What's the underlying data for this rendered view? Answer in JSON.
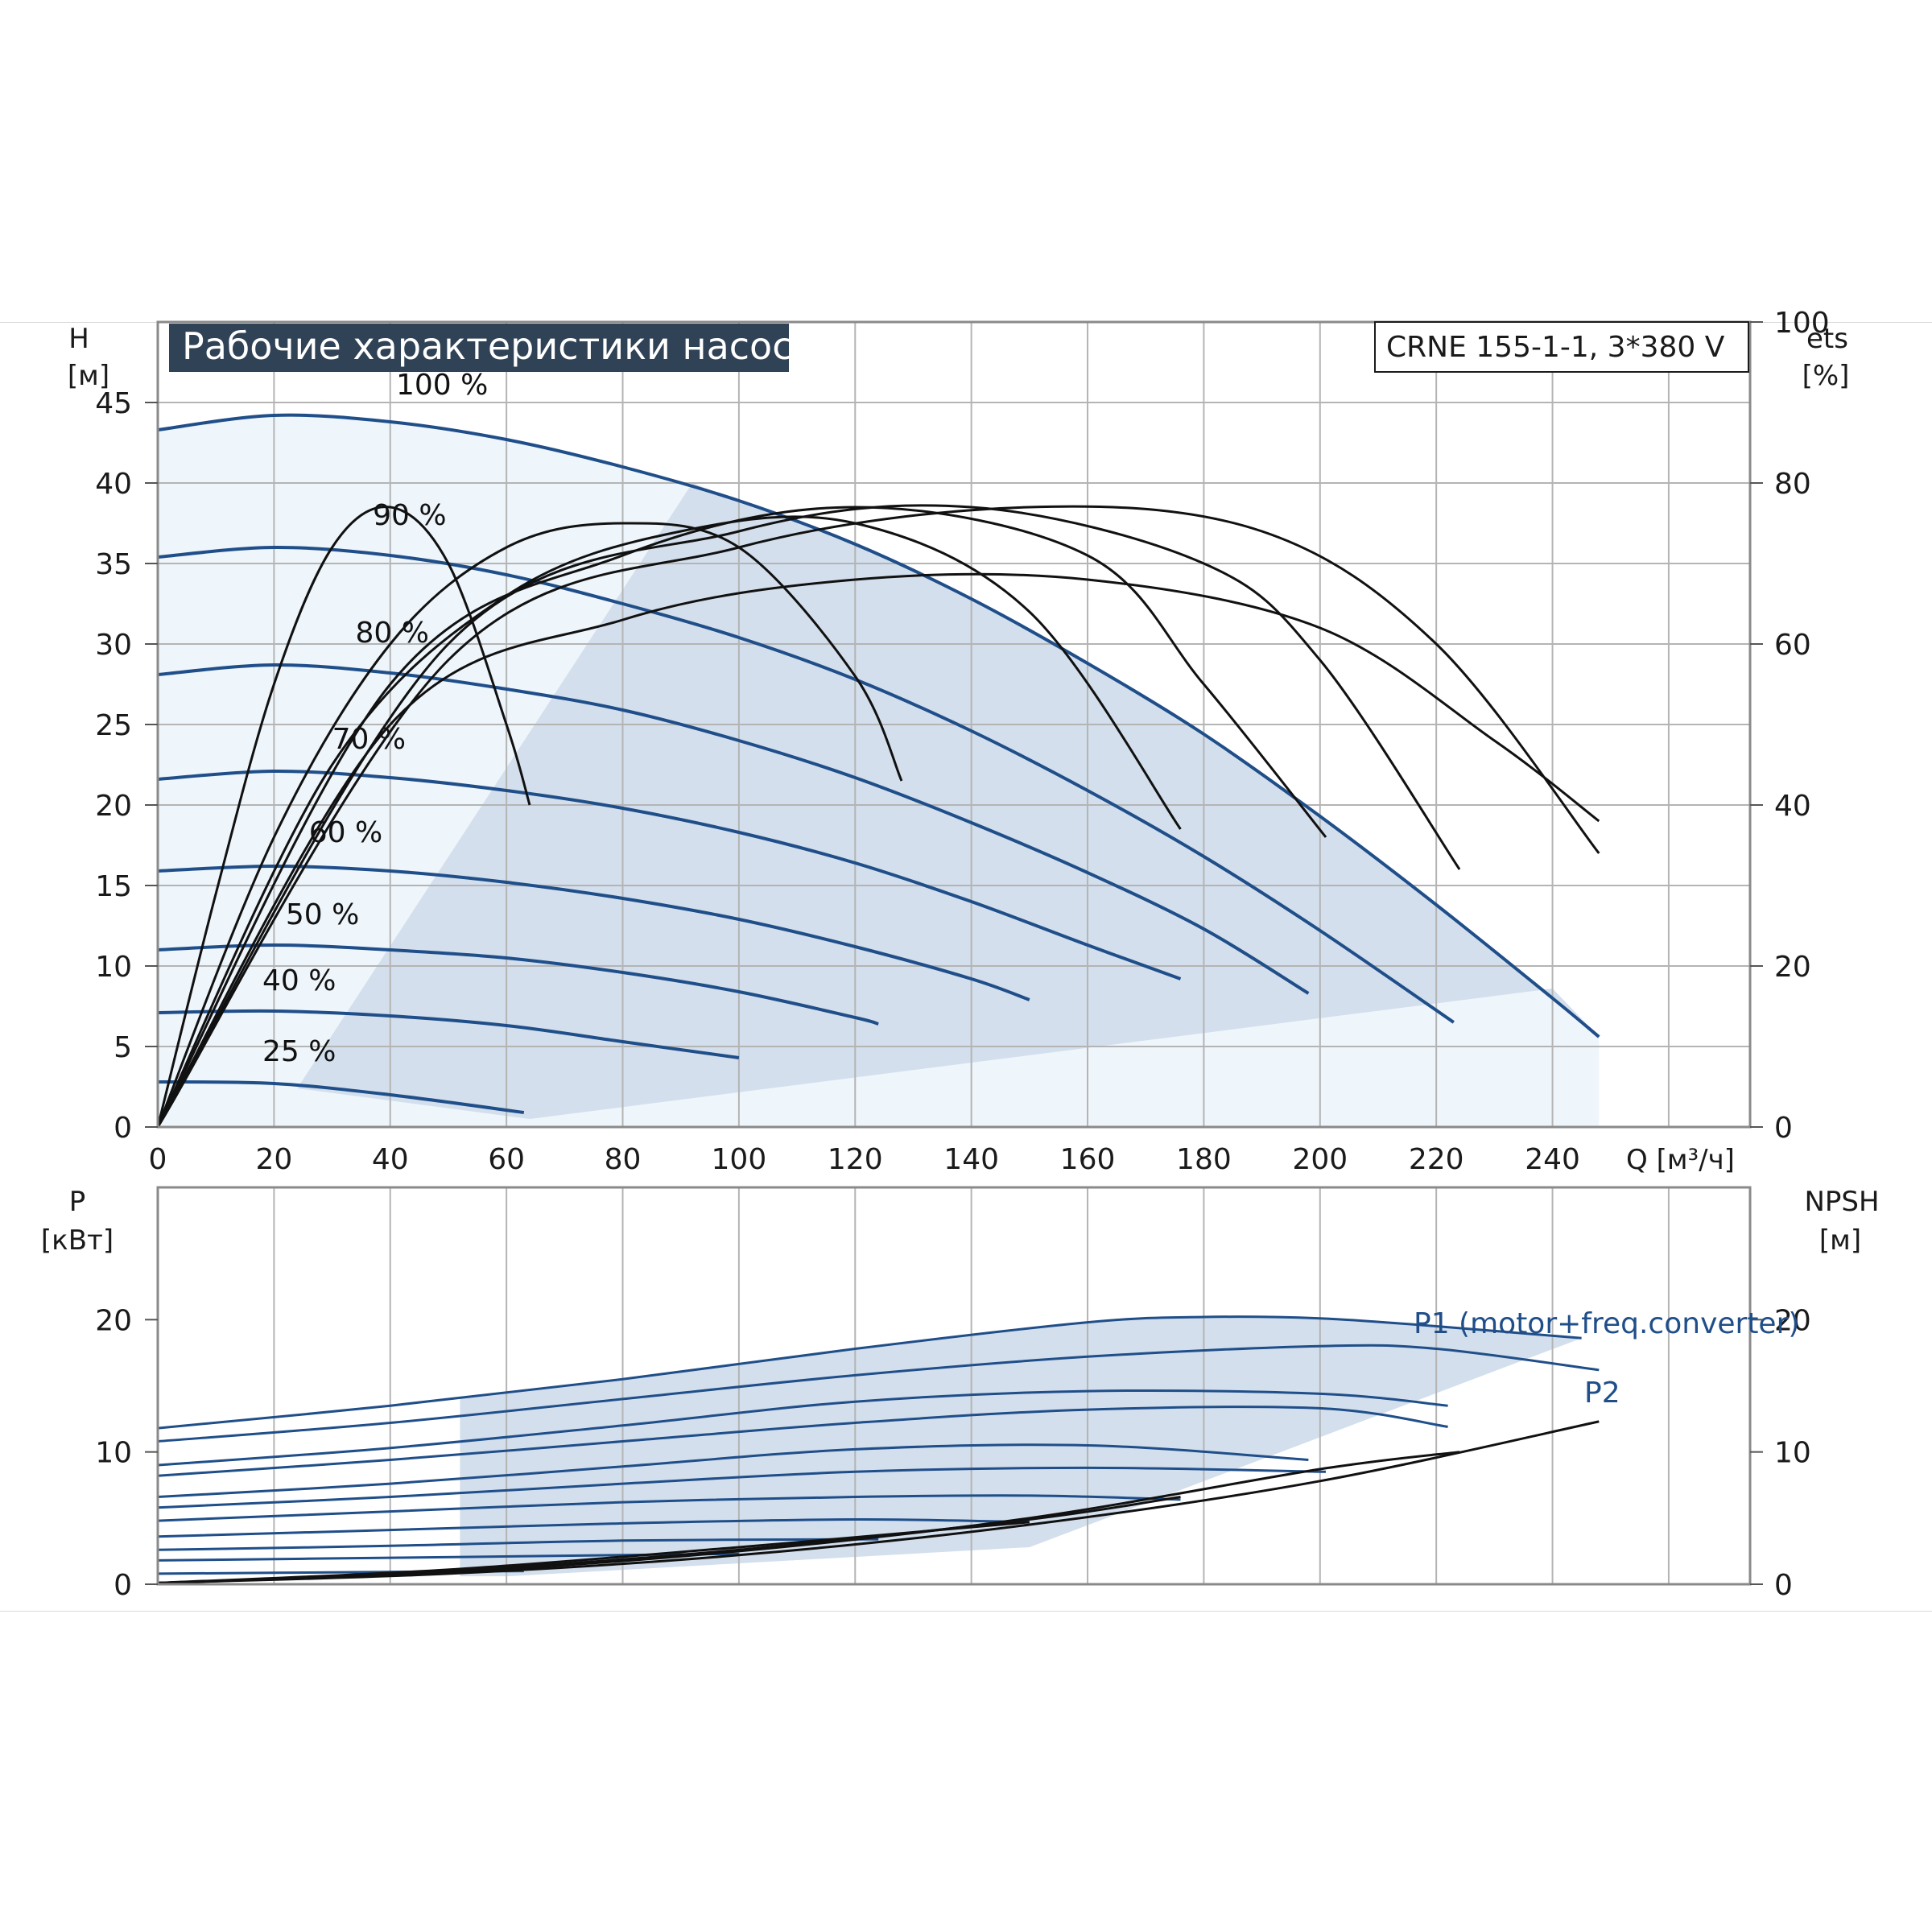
{
  "chart_title": "Рабочие характеристики насоса",
  "model": "CRNE 155-1-1, 3*380 V",
  "colors": {
    "head_curve": "#1f4e89",
    "eff_curve": "#111111",
    "band_fill": "#d3dfec",
    "light_fill": "#eef5fb",
    "grid": "#b4b4b4",
    "title_bg": "#2f4256"
  },
  "top_chart": {
    "y_label_lines": [
      "H",
      "[м]"
    ],
    "y2_label_lines": [
      "ets",
      "[%]"
    ],
    "x_label": "Q [м³/ч]",
    "x_ticks": [
      "0",
      "20",
      "40",
      "60",
      "80",
      "100",
      "120",
      "140",
      "160",
      "180",
      "200",
      "220",
      "240"
    ],
    "y_ticks": [
      "0",
      "5",
      "10",
      "15",
      "20",
      "25",
      "30",
      "35",
      "40",
      "45"
    ],
    "y2_ticks": [
      "0",
      "20",
      "40",
      "60",
      "80",
      "100"
    ],
    "speed_labels": [
      "100 %",
      "90 %",
      "80 %",
      "70 %",
      "60 %",
      "50 %",
      "40 %",
      "25 %"
    ]
  },
  "bottom_chart": {
    "y_label_lines": [
      "P",
      "[кВт]"
    ],
    "y2_label_lines": [
      "NPSH",
      "[м]"
    ],
    "y_ticks": [
      "0",
      "10",
      "20"
    ],
    "y2_ticks": [
      "0",
      "10",
      "20"
    ],
    "p1_label": "P1 (motor+freq.converter)",
    "p2_label": "P2"
  },
  "chart_data": [
    {
      "type": "line",
      "xlabel": "Q [м³/ч]",
      "ylabel": "H [м]",
      "y2label": "ets [%]",
      "xlim": [
        0,
        274
      ],
      "ylim": [
        0,
        50
      ],
      "y2lim": [
        0,
        100
      ],
      "grid": true,
      "series": [
        {
          "name": "100 %",
          "x": [
            0,
            20,
            40,
            60,
            80,
            100,
            120,
            140,
            160,
            180,
            200,
            220,
            240,
            248
          ],
          "y": [
            43.3,
            44.2,
            43.8,
            42.7,
            41.0,
            38.9,
            36.2,
            32.8,
            28.8,
            24.4,
            19.3,
            13.8,
            8.0,
            5.6
          ]
        },
        {
          "name": "90 %",
          "x": [
            0,
            20,
            40,
            60,
            80,
            100,
            120,
            140,
            160,
            180,
            200,
            223
          ],
          "y": [
            35.4,
            36.0,
            35.5,
            34.3,
            32.5,
            30.4,
            27.8,
            24.6,
            20.9,
            16.8,
            12.2,
            6.5
          ]
        },
        {
          "name": "80 %",
          "x": [
            0,
            20,
            40,
            60,
            80,
            100,
            120,
            140,
            160,
            180,
            198
          ],
          "y": [
            28.1,
            28.7,
            28.2,
            27.2,
            25.9,
            24.0,
            21.7,
            18.9,
            15.8,
            12.3,
            8.3
          ]
        },
        {
          "name": "70 %",
          "x": [
            0,
            20,
            40,
            60,
            80,
            100,
            120,
            140,
            160,
            176
          ],
          "y": [
            21.6,
            22.1,
            21.7,
            20.9,
            19.8,
            18.3,
            16.4,
            14.0,
            11.3,
            9.2
          ]
        },
        {
          "name": "60 %",
          "x": [
            0,
            20,
            40,
            60,
            80,
            100,
            120,
            140,
            150
          ],
          "y": [
            15.9,
            16.2,
            15.9,
            15.2,
            14.2,
            12.9,
            11.2,
            9.2,
            7.9
          ]
        },
        {
          "name": "50 %",
          "x": [
            0,
            20,
            40,
            60,
            80,
            100,
            120,
            124
          ],
          "y": [
            11.0,
            11.3,
            11.0,
            10.5,
            9.6,
            8.4,
            6.8,
            6.4
          ]
        },
        {
          "name": "40 %",
          "x": [
            0,
            20,
            40,
            60,
            80,
            100
          ],
          "y": [
            7.1,
            7.2,
            6.9,
            6.3,
            5.3,
            4.3
          ]
        },
        {
          "name": "25 %",
          "x": [
            0,
            20,
            40,
            63
          ],
          "y": [
            2.8,
            2.7,
            2.0,
            0.9
          ]
        },
        {
          "name": "",
          "axis": "y2",
          "x": [
            0,
            10,
            20,
            30,
            40,
            50,
            60,
            64
          ],
          "y": [
            0,
            29,
            55,
            72,
            77,
            70,
            50,
            40
          ]
        },
        {
          "name": "",
          "axis": "y2",
          "x": [
            0,
            20,
            40,
            60,
            80,
            100,
            120,
            128
          ],
          "y": [
            0,
            36,
            60,
            72,
            75,
            72,
            56,
            43
          ]
        },
        {
          "name": "",
          "axis": "y2",
          "x": [
            0,
            30,
            60,
            90,
            120,
            150,
            176
          ],
          "y": [
            0,
            45,
            66,
            74,
            75,
            64,
            37
          ]
        },
        {
          "name": "",
          "axis": "y2",
          "x": [
            0,
            40,
            80,
            120,
            160,
            180,
            201
          ],
          "y": [
            0,
            55,
            71,
            77,
            71,
            55,
            36
          ]
        },
        {
          "name": "",
          "axis": "y2",
          "x": [
            0,
            50,
            100,
            140,
            180,
            200,
            224
          ],
          "y": [
            0,
            60,
            74,
            77,
            70,
            58,
            32
          ]
        },
        {
          "name": "",
          "axis": "y2",
          "x": [
            0,
            50,
            100,
            150,
            190,
            220,
            248
          ],
          "y": [
            0,
            58,
            72,
            77,
            74,
            60,
            34
          ]
        },
        {
          "name": "",
          "axis": "y2",
          "x": [
            0,
            40,
            80,
            120,
            160,
            200,
            230,
            248
          ],
          "y": [
            0,
            50,
            63,
            68,
            68,
            62,
            48,
            38
          ]
        }
      ]
    },
    {
      "type": "line",
      "xlabel": "Q [м³/ч]",
      "ylabel": "P [кВт]",
      "y2label": "NPSH [м]",
      "xlim": [
        0,
        274
      ],
      "ylim": [
        0,
        30
      ],
      "y2lim": [
        0,
        30
      ],
      "grid": true,
      "series": [
        {
          "name": "P1 (motor+freq.converter)",
          "x": [
            0,
            40,
            80,
            120,
            160,
            180,
            200,
            220,
            245
          ],
          "y": [
            11.8,
            13.5,
            15.5,
            17.8,
            19.8,
            20.2,
            20.1,
            19.5,
            18.6
          ]
        },
        {
          "name": "",
          "x": [
            0,
            40,
            80,
            120,
            160,
            200,
            220,
            248
          ],
          "y": [
            10.8,
            12.2,
            14.0,
            15.8,
            17.2,
            18.0,
            17.8,
            16.2
          ]
        },
        {
          "name": "",
          "x": [
            0,
            40,
            80,
            120,
            160,
            200,
            222
          ],
          "y": [
            9.0,
            10.3,
            12.0,
            13.8,
            14.6,
            14.4,
            13.5
          ]
        },
        {
          "name": "",
          "x": [
            0,
            40,
            80,
            120,
            160,
            200,
            222
          ],
          "y": [
            8.2,
            9.4,
            10.8,
            12.2,
            13.2,
            13.3,
            11.9
          ]
        },
        {
          "name": "",
          "x": [
            0,
            40,
            80,
            120,
            160,
            198
          ],
          "y": [
            6.6,
            7.6,
            8.9,
            10.2,
            10.5,
            9.4
          ]
        },
        {
          "name": "",
          "x": [
            0,
            40,
            80,
            120,
            160,
            201
          ],
          "y": [
            5.8,
            6.6,
            7.6,
            8.5,
            8.8,
            8.5
          ]
        },
        {
          "name": "",
          "x": [
            0,
            40,
            80,
            120,
            150,
            176
          ],
          "y": [
            4.8,
            5.5,
            6.2,
            6.6,
            6.7,
            6.4
          ]
        },
        {
          "name": "",
          "x": [
            0,
            40,
            80,
            120,
            150
          ],
          "y": [
            3.6,
            4.1,
            4.6,
            4.9,
            4.7
          ]
        },
        {
          "name": "",
          "x": [
            0,
            40,
            80,
            124
          ],
          "y": [
            2.6,
            2.9,
            3.3,
            3.4
          ]
        },
        {
          "name": "",
          "x": [
            0,
            40,
            80,
            100
          ],
          "y": [
            1.8,
            2.0,
            2.2,
            2.3
          ]
        },
        {
          "name": "",
          "x": [
            0,
            30,
            63
          ],
          "y": [
            0.8,
            0.9,
            1.0
          ]
        },
        {
          "name": "P2",
          "axis": "y2",
          "x": [
            0,
            50,
            100,
            150,
            200,
            248
          ],
          "y": [
            0.1,
            0.8,
            2.2,
            4.5,
            7.8,
            12.3
          ]
        },
        {
          "name": "",
          "axis": "y2",
          "x": [
            0,
            50,
            100,
            150,
            200,
            224
          ],
          "y": [
            0.1,
            0.9,
            2.5,
            5.0,
            8.7,
            10.0
          ]
        },
        {
          "name": "",
          "axis": "y2",
          "x": [
            0,
            50,
            100,
            150,
            176
          ],
          "y": [
            0.1,
            1.0,
            2.6,
            4.9,
            6.6
          ]
        },
        {
          "name": "",
          "axis": "y2",
          "x": [
            0,
            50,
            100,
            150
          ],
          "y": [
            0.1,
            1.1,
            2.8,
            4.7
          ]
        }
      ]
    }
  ]
}
